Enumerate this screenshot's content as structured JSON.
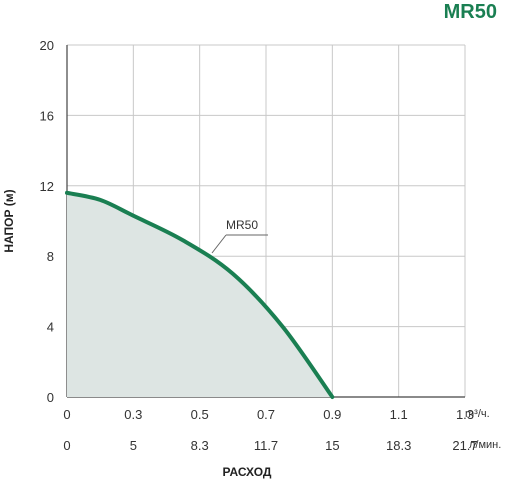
{
  "chart_data": {
    "type": "area",
    "title": "MR50",
    "ylabel": "НАПОР (м)",
    "xlabel": "РАСХОД",
    "ylim": [
      0,
      20
    ],
    "y_ticks": [
      "0",
      "4",
      "8",
      "12",
      "16",
      "20"
    ],
    "x_ticks_primary": [
      "0",
      "0.3",
      "0.5",
      "0.7",
      "0.9",
      "1.1",
      "1.3"
    ],
    "x_unit_primary": "m³/ч.",
    "x_ticks_secondary": [
      "0",
      "5",
      "8.3",
      "11.7",
      "15",
      "18.3",
      "21.7"
    ],
    "x_unit_secondary": "л/мин.",
    "grid": true,
    "series": [
      {
        "name": "MR50",
        "x": [
          0,
          0.15,
          0.3,
          0.45,
          0.6,
          0.75,
          0.9
        ],
        "y": [
          11.6,
          11.2,
          10.3,
          8.9,
          7.0,
          4.0,
          0
        ],
        "fill": "#dde5e3",
        "color": "#1a7f52"
      }
    ]
  }
}
